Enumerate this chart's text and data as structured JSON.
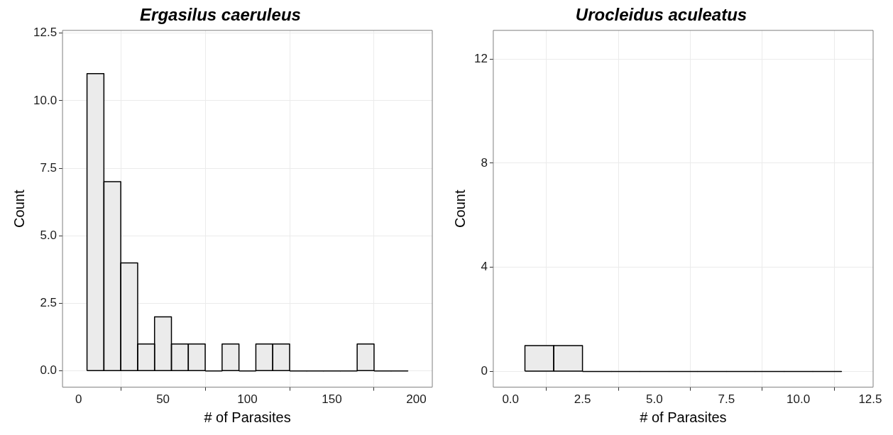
{
  "chart_data": [
    {
      "type": "histogram",
      "title": "Ergasilus caeruleus",
      "xlabel": "# of Parasites",
      "ylabel": "Count",
      "bins": [
        5,
        15,
        25,
        35,
        45,
        55,
        65,
        75,
        85,
        95,
        105,
        115,
        125,
        135,
        145,
        155,
        165,
        175,
        185,
        195
      ],
      "values": [
        11,
        7,
        4,
        1,
        2,
        1,
        1,
        0,
        1,
        0,
        1,
        1,
        0,
        0,
        0,
        0,
        1,
        0,
        0
      ],
      "color": "#ebebeb",
      "xlim": [
        -9.5,
        209.5
      ],
      "xticks": [
        0,
        50,
        100,
        150,
        200
      ],
      "ylim": [
        -0.6,
        12.6
      ],
      "yticks": [
        {
          "value": 0,
          "label": "0.0"
        },
        {
          "value": 2.5,
          "label": "2.5"
        },
        {
          "value": 5,
          "label": "5.0"
        },
        {
          "value": 7.5,
          "label": "7.5"
        },
        {
          "value": 10,
          "label": "10.0"
        },
        {
          "value": 12.5,
          "label": "12.5"
        }
      ],
      "grid": true
    },
    {
      "type": "histogram",
      "title": "Urocleidus aculeatus",
      "xlabel": "# of Parasites",
      "ylabel": "Count",
      "bins": [
        0.5,
        1.5,
        2.5,
        3.5,
        4.5,
        5.5,
        6.5,
        7.5,
        8.5,
        9.5,
        10.5,
        11.5
      ],
      "values": [
        1,
        1,
        0,
        0,
        0,
        0,
        0,
        0,
        0,
        0,
        0
      ],
      "color": "#ebebeb",
      "xlim": [
        -0.6,
        12.6
      ],
      "xticks": [
        {
          "value": 0,
          "label": "0.0"
        },
        {
          "value": 2.5,
          "label": "2.5"
        },
        {
          "value": 5,
          "label": "5.0"
        },
        {
          "value": 7.5,
          "label": "7.5"
        },
        {
          "value": 10,
          "label": "10.0"
        },
        {
          "value": 12.5,
          "label": "12.5"
        }
      ],
      "ylim": [
        -0.6,
        13.1
      ],
      "yticks": [
        0,
        4,
        8,
        12
      ],
      "grid": true
    }
  ]
}
